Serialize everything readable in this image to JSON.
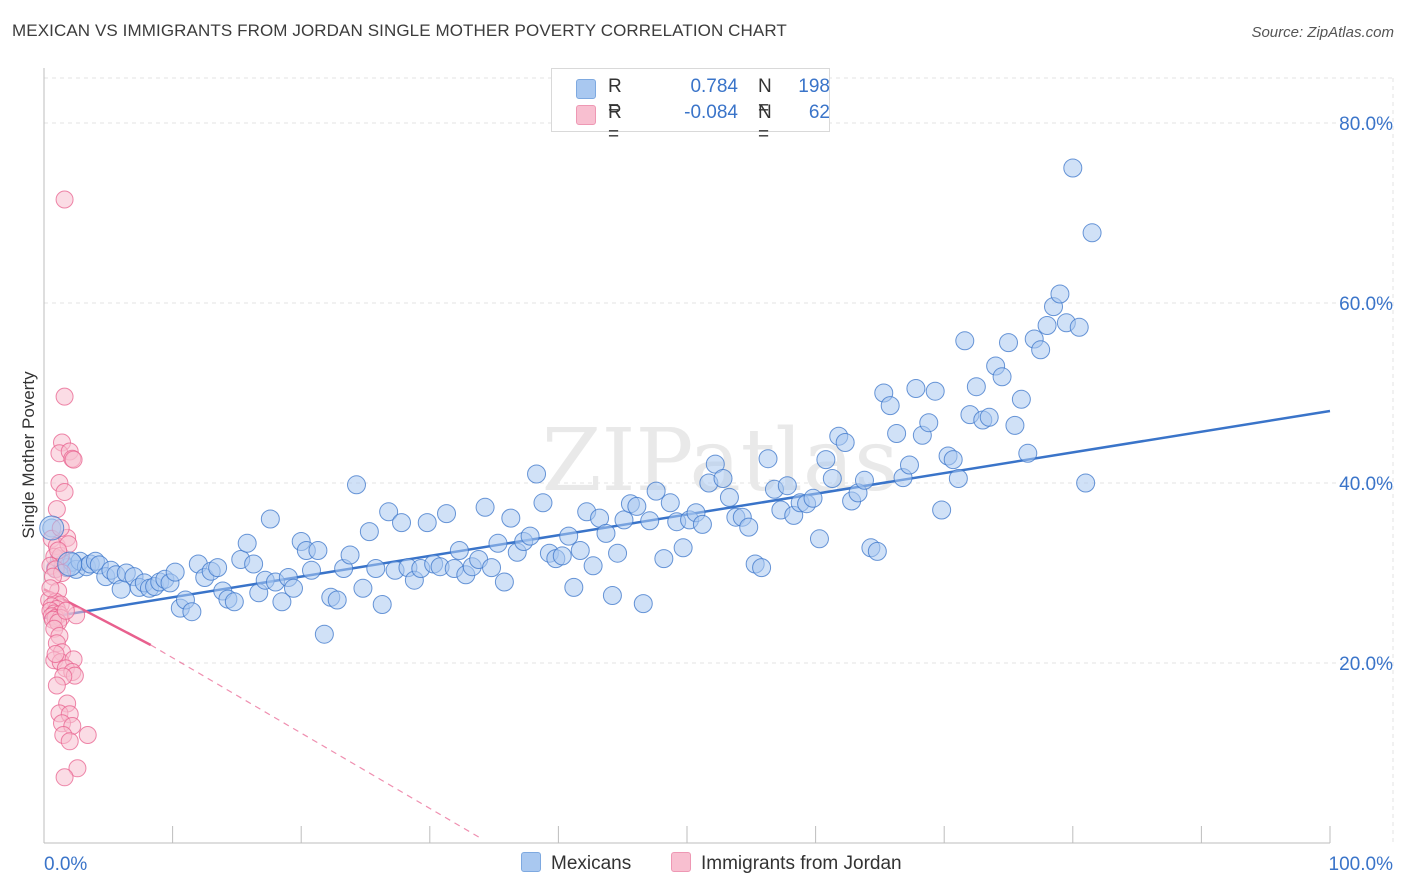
{
  "header": {
    "title": "MEXICAN VS IMMIGRANTS FROM JORDAN SINGLE MOTHER POVERTY CORRELATION CHART",
    "source": "Source: ZipAtlas.com"
  },
  "legend": {
    "rows": [
      {
        "r_label": "R =",
        "r_value": "0.784",
        "n_label": "N =",
        "n_value": "198",
        "color": "#a9c8f0",
        "border": "#7ea9e0"
      },
      {
        "r_label": "R =",
        "r_value": "-0.084",
        "n_label": "N =",
        "n_value": "62",
        "color": "#f8bfd0",
        "border": "#ee98b4"
      }
    ]
  },
  "bottom_legend": [
    {
      "label": "Mexicans",
      "color": "#a9c8f0",
      "border": "#7ea9e0"
    },
    {
      "label": "Immigrants from Jordan",
      "color": "#f8bfd0",
      "border": "#ee98b4"
    }
  ],
  "chart_data": {
    "type": "scatter",
    "title": "MEXICAN VS IMMIGRANTS FROM JORDAN SINGLE MOTHER POVERTY CORRELATION CHART",
    "xlabel": "",
    "ylabel": "Single Mother Poverty",
    "xlim": [
      0,
      100
    ],
    "ylim": [
      0,
      85
    ],
    "x_tick_labels": [
      "0.0%",
      "100.0%"
    ],
    "y_ticks": [
      20,
      40,
      60,
      80
    ],
    "y_tick_labels": [
      "20.0%",
      "40.0%",
      "60.0%",
      "80.0%"
    ],
    "grid": true,
    "watermark": "ZIPatlas",
    "colors": {
      "blue": "#3a74c9",
      "pink": "#e8608e",
      "grid": "#e3e3e3",
      "axis_text": "#3a74c9"
    },
    "series": [
      {
        "name": "Mexicans",
        "color": "#3a74c9",
        "fill": "#a9c8f0",
        "trend": {
          "x": [
            0,
            100
          ],
          "y": [
            25.0,
            48.0
          ],
          "style": "solid"
        },
        "points": [
          [
            0.6,
            35.0
          ],
          [
            0.9,
            30.5
          ],
          [
            1.2,
            31.5
          ],
          [
            1.5,
            31.0
          ],
          [
            1.8,
            30.6
          ],
          [
            2.2,
            31.2
          ],
          [
            2.5,
            30.4
          ],
          [
            2.8,
            31.3
          ],
          [
            3.3,
            30.7
          ],
          [
            3.6,
            31.0
          ],
          [
            4.0,
            31.3
          ],
          [
            4.3,
            30.9
          ],
          [
            4.8,
            29.6
          ],
          [
            5.2,
            30.3
          ],
          [
            5.6,
            29.8
          ],
          [
            6.0,
            28.2
          ],
          [
            6.4,
            30.0
          ],
          [
            7.0,
            29.6
          ],
          [
            7.4,
            28.4
          ],
          [
            7.8,
            28.9
          ],
          [
            8.2,
            28.3
          ],
          [
            8.6,
            28.5
          ],
          [
            9.0,
            29.0
          ],
          [
            9.4,
            29.3
          ],
          [
            9.8,
            28.9
          ],
          [
            10.2,
            30.1
          ],
          [
            10.6,
            26.1
          ],
          [
            11.0,
            27.0
          ],
          [
            11.5,
            25.7
          ],
          [
            12.0,
            31.0
          ],
          [
            12.5,
            29.5
          ],
          [
            13.0,
            30.2
          ],
          [
            13.5,
            30.6
          ],
          [
            13.9,
            28.0
          ],
          [
            14.3,
            27.1
          ],
          [
            14.8,
            26.8
          ],
          [
            15.3,
            31.5
          ],
          [
            15.8,
            33.3
          ],
          [
            16.3,
            31.0
          ],
          [
            16.7,
            27.8
          ],
          [
            17.2,
            29.2
          ],
          [
            17.6,
            36.0
          ],
          [
            18.0,
            29.0
          ],
          [
            18.5,
            26.8
          ],
          [
            19.0,
            29.5
          ],
          [
            19.4,
            28.3
          ],
          [
            20.0,
            33.5
          ],
          [
            20.4,
            32.5
          ],
          [
            20.8,
            30.3
          ],
          [
            21.3,
            32.5
          ],
          [
            21.8,
            23.2
          ],
          [
            22.3,
            27.3
          ],
          [
            22.8,
            27.0
          ],
          [
            23.3,
            30.5
          ],
          [
            23.8,
            32.0
          ],
          [
            24.3,
            39.8
          ],
          [
            24.8,
            28.3
          ],
          [
            25.3,
            34.6
          ],
          [
            25.8,
            30.5
          ],
          [
            26.3,
            26.5
          ],
          [
            26.8,
            36.8
          ],
          [
            27.3,
            30.3
          ],
          [
            27.8,
            35.6
          ],
          [
            28.3,
            30.6
          ],
          [
            28.8,
            29.2
          ],
          [
            29.3,
            30.5
          ],
          [
            29.8,
            35.6
          ],
          [
            30.3,
            31.0
          ],
          [
            30.8,
            30.7
          ],
          [
            31.3,
            36.6
          ],
          [
            31.9,
            30.5
          ],
          [
            32.3,
            32.5
          ],
          [
            32.8,
            29.8
          ],
          [
            33.3,
            30.7
          ],
          [
            33.8,
            31.5
          ],
          [
            34.3,
            37.3
          ],
          [
            34.8,
            30.6
          ],
          [
            35.3,
            33.3
          ],
          [
            35.8,
            29.0
          ],
          [
            36.3,
            36.1
          ],
          [
            36.8,
            32.3
          ],
          [
            37.3,
            33.5
          ],
          [
            37.8,
            34.1
          ],
          [
            38.3,
            41.0
          ],
          [
            38.8,
            37.8
          ],
          [
            39.3,
            32.2
          ],
          [
            39.8,
            31.6
          ],
          [
            40.3,
            31.9
          ],
          [
            40.8,
            34.1
          ],
          [
            41.2,
            28.4
          ],
          [
            41.7,
            32.5
          ],
          [
            42.2,
            36.8
          ],
          [
            42.7,
            30.8
          ],
          [
            43.2,
            36.1
          ],
          [
            43.7,
            34.4
          ],
          [
            44.2,
            27.5
          ],
          [
            44.6,
            32.2
          ],
          [
            45.1,
            35.9
          ],
          [
            45.6,
            37.7
          ],
          [
            46.1,
            37.4
          ],
          [
            46.6,
            26.6
          ],
          [
            47.1,
            35.8
          ],
          [
            47.6,
            39.1
          ],
          [
            48.2,
            31.6
          ],
          [
            48.7,
            37.8
          ],
          [
            49.2,
            35.7
          ],
          [
            49.7,
            32.8
          ],
          [
            50.2,
            35.9
          ],
          [
            50.7,
            36.7
          ],
          [
            51.2,
            35.4
          ],
          [
            51.7,
            40.0
          ],
          [
            52.2,
            42.1
          ],
          [
            52.8,
            40.5
          ],
          [
            53.3,
            38.4
          ],
          [
            53.8,
            36.2
          ],
          [
            54.3,
            36.2
          ],
          [
            54.8,
            35.1
          ],
          [
            55.3,
            31.0
          ],
          [
            55.8,
            30.6
          ],
          [
            56.3,
            42.7
          ],
          [
            56.8,
            39.3
          ],
          [
            57.3,
            37.0
          ],
          [
            57.8,
            39.7
          ],
          [
            58.3,
            36.4
          ],
          [
            58.8,
            37.8
          ],
          [
            59.3,
            37.7
          ],
          [
            59.8,
            38.3
          ],
          [
            60.3,
            33.8
          ],
          [
            60.8,
            42.6
          ],
          [
            61.3,
            40.5
          ],
          [
            61.8,
            45.2
          ],
          [
            62.3,
            44.5
          ],
          [
            62.8,
            38.0
          ],
          [
            63.3,
            38.9
          ],
          [
            63.8,
            40.3
          ],
          [
            64.3,
            32.8
          ],
          [
            64.8,
            32.4
          ],
          [
            65.3,
            50.0
          ],
          [
            65.8,
            48.6
          ],
          [
            66.3,
            45.5
          ],
          [
            66.8,
            40.6
          ],
          [
            67.3,
            42.0
          ],
          [
            67.8,
            50.5
          ],
          [
            68.3,
            45.3
          ],
          [
            68.8,
            46.7
          ],
          [
            69.3,
            50.2
          ],
          [
            69.8,
            37.0
          ],
          [
            70.3,
            43.0
          ],
          [
            70.7,
            42.6
          ],
          [
            71.1,
            40.5
          ],
          [
            71.6,
            55.8
          ],
          [
            72.0,
            47.6
          ],
          [
            72.5,
            50.7
          ],
          [
            73.0,
            47.0
          ],
          [
            73.5,
            47.3
          ],
          [
            74.0,
            53.0
          ],
          [
            74.5,
            51.8
          ],
          [
            75.0,
            55.6
          ],
          [
            75.5,
            46.4
          ],
          [
            76.0,
            49.3
          ],
          [
            76.5,
            43.3
          ],
          [
            77.0,
            56.0
          ],
          [
            77.5,
            54.8
          ],
          [
            78.0,
            57.5
          ],
          [
            78.5,
            59.6
          ],
          [
            79.0,
            61.0
          ],
          [
            79.5,
            57.8
          ],
          [
            80.0,
            75.0
          ],
          [
            80.5,
            57.3
          ],
          [
            81.0,
            40.0
          ],
          [
            81.5,
            67.8
          ]
        ]
      },
      {
        "name": "Immigrants from Jordan",
        "color": "#e8608e",
        "fill": "#f8bfd0",
        "trend": {
          "x": [
            0,
            8.3
          ],
          "y": [
            28.2,
            22.0
          ],
          "dash_to": [
            34.0,
            0.5
          ],
          "style": "solid-then-dashed"
        },
        "points": [
          [
            1.6,
            71.5
          ],
          [
            1.6,
            49.6
          ],
          [
            1.4,
            44.5
          ],
          [
            1.2,
            43.3
          ],
          [
            2.0,
            43.5
          ],
          [
            2.2,
            42.7
          ],
          [
            2.3,
            42.6
          ],
          [
            1.2,
            40.0
          ],
          [
            1.6,
            39.0
          ],
          [
            1.0,
            37.1
          ],
          [
            0.6,
            33.8
          ],
          [
            1.0,
            33.0
          ],
          [
            0.8,
            31.8
          ],
          [
            1.3,
            31.9
          ],
          [
            1.8,
            33.9
          ],
          [
            0.5,
            30.8
          ],
          [
            0.9,
            30.4
          ],
          [
            1.4,
            30.0
          ],
          [
            0.7,
            29.6
          ],
          [
            1.1,
            28.0
          ],
          [
            0.4,
            27.0
          ],
          [
            0.9,
            26.8
          ],
          [
            1.3,
            26.5
          ],
          [
            0.6,
            26.3
          ],
          [
            1.0,
            26.0
          ],
          [
            0.5,
            25.8
          ],
          [
            0.8,
            25.5
          ],
          [
            1.2,
            25.4
          ],
          [
            0.6,
            25.2
          ],
          [
            0.9,
            25.0
          ],
          [
            1.3,
            25.0
          ],
          [
            0.7,
            24.8
          ],
          [
            1.1,
            24.5
          ],
          [
            0.8,
            23.8
          ],
          [
            1.2,
            23.0
          ],
          [
            1.0,
            22.2
          ],
          [
            1.4,
            21.2
          ],
          [
            0.8,
            20.3
          ],
          [
            1.3,
            20.1
          ],
          [
            2.3,
            20.4
          ],
          [
            1.7,
            19.4
          ],
          [
            2.2,
            19.0
          ],
          [
            2.4,
            18.6
          ],
          [
            1.5,
            18.5
          ],
          [
            1.0,
            17.5
          ],
          [
            1.8,
            15.5
          ],
          [
            1.2,
            14.4
          ],
          [
            2.0,
            14.3
          ],
          [
            1.4,
            13.3
          ],
          [
            2.2,
            13.0
          ],
          [
            1.5,
            12.0
          ],
          [
            2.0,
            11.3
          ],
          [
            2.6,
            8.3
          ],
          [
            1.6,
            7.3
          ],
          [
            2.5,
            25.3
          ],
          [
            1.9,
            33.2
          ],
          [
            1.1,
            32.5
          ],
          [
            0.5,
            28.3
          ],
          [
            3.4,
            12.0
          ],
          [
            1.7,
            25.8
          ],
          [
            0.9,
            21.0
          ],
          [
            1.3,
            35.0
          ]
        ]
      }
    ]
  }
}
